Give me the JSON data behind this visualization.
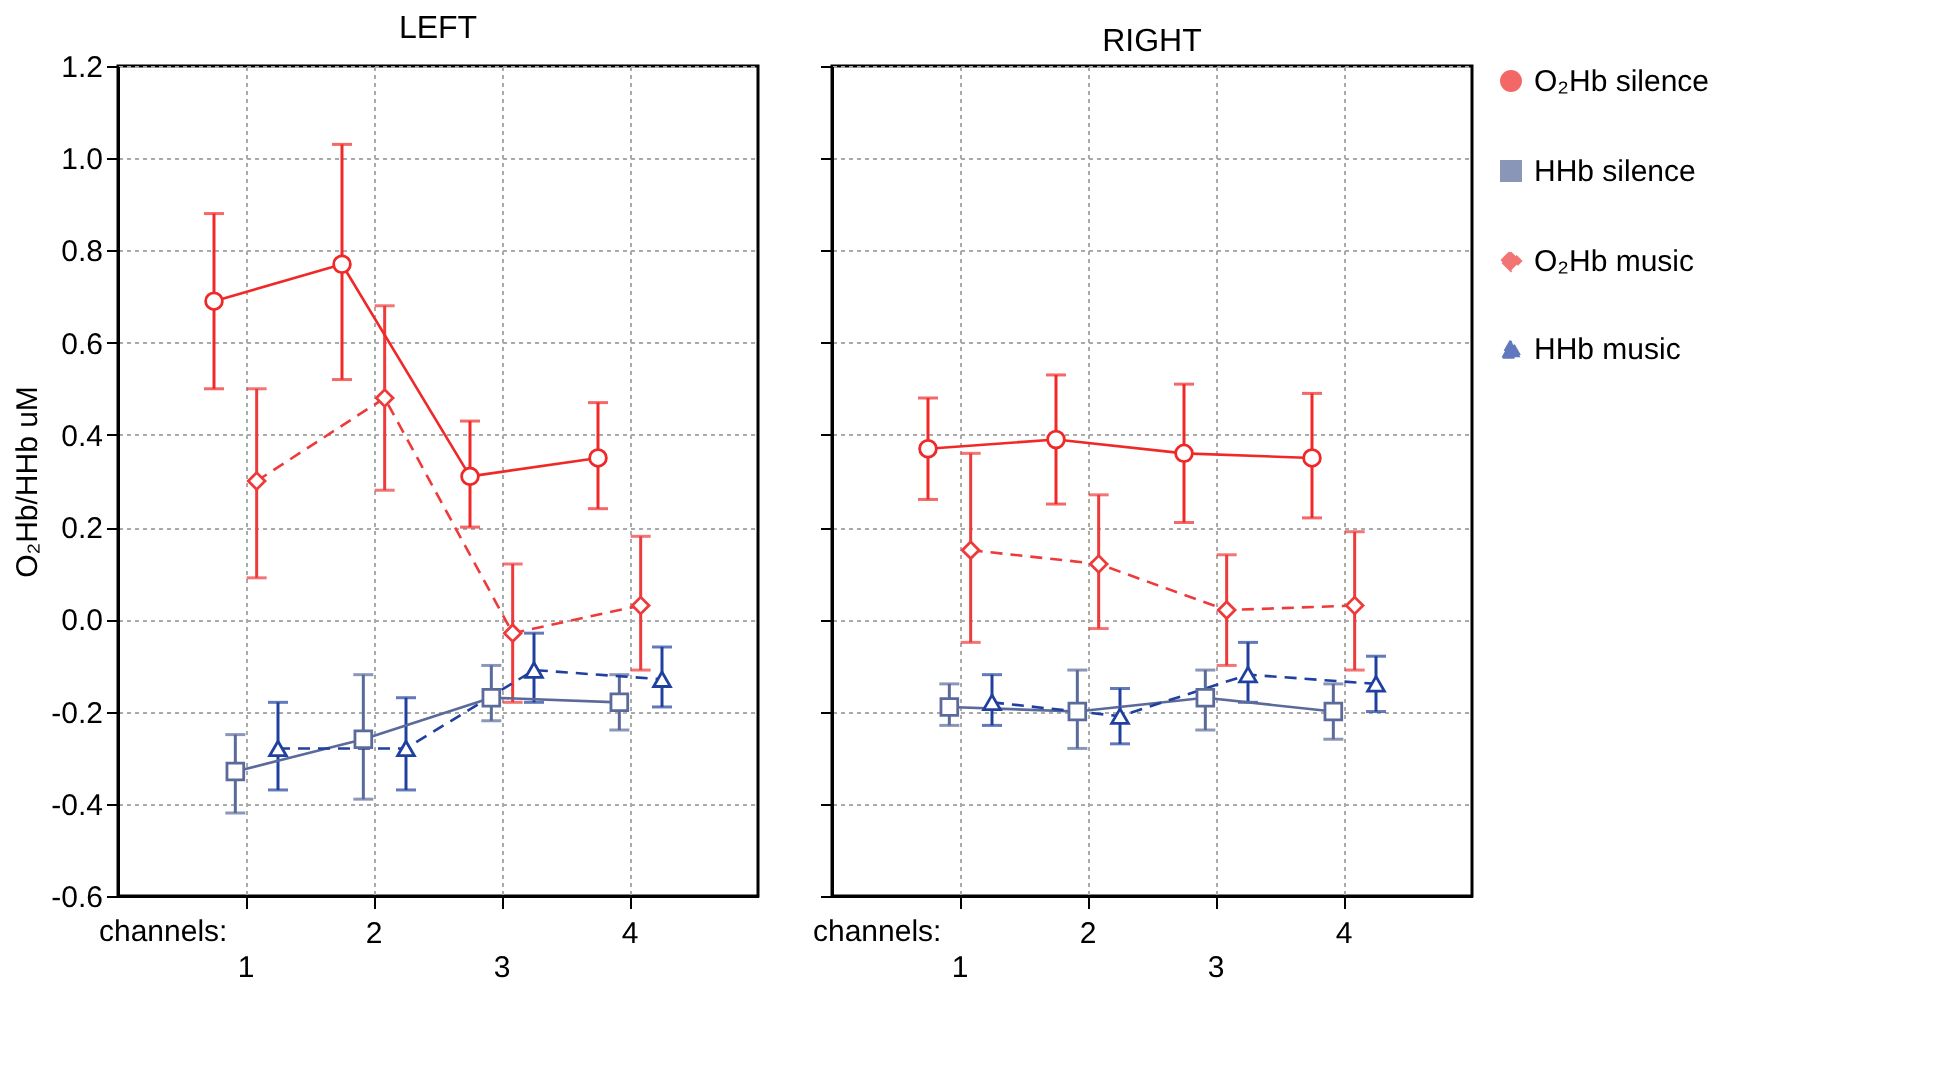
{
  "chart_data": [
    {
      "type": "line",
      "title": "LEFT",
      "xlabel": "channels:",
      "ylabel": "O₂Hb/HHb uM",
      "categories": [
        "1",
        "2",
        "3",
        "4"
      ],
      "ylim": [
        -0.6,
        1.2
      ],
      "yticks": [
        -0.6,
        -0.4,
        -0.2,
        {
          "value": 0,
          "label": "0.0"
        },
        0.2,
        0.4,
        0.6,
        0.8,
        {
          "value": 1,
          "label": "1.0"
        },
        1.2
      ],
      "grid": true,
      "series": [
        {
          "color": "#f02828",
          "marker": "circle",
          "line_style": "solid",
          "values": [
            0.69,
            0.77,
            0.31,
            0.35
          ],
          "errors": [
            [
              0.5,
              0.88
            ],
            [
              0.52,
              1.03
            ],
            [
              0.2,
              0.43
            ],
            [
              0.24,
              0.47
            ]
          ]
        },
        {
          "color": "#5a6a9a",
          "marker": "square",
          "line_style": "solid",
          "values": [
            -0.33,
            -0.26,
            -0.17,
            -0.18
          ],
          "errors": [
            [
              -0.42,
              -0.25
            ],
            [
              -0.39,
              -0.12
            ],
            [
              -0.22,
              -0.1
            ],
            [
              -0.24,
              -0.12
            ]
          ]
        },
        {
          "color": "#ee3a3a",
          "marker": "diamond",
          "line_style": "dashed",
          "values": [
            0.3,
            0.48,
            -0.03,
            0.03
          ],
          "errors": [
            [
              0.09,
              0.5
            ],
            [
              0.28,
              0.68
            ],
            [
              -0.18,
              0.12
            ],
            [
              -0.11,
              0.18
            ]
          ]
        },
        {
          "color": "#2040a0",
          "marker": "triangle",
          "line_style": "dashed",
          "values": [
            -0.28,
            -0.28,
            -0.11,
            -0.13
          ],
          "errors": [
            [
              -0.37,
              -0.18
            ],
            [
              -0.37,
              -0.17
            ],
            [
              -0.18,
              -0.03
            ],
            [
              -0.19,
              -0.06
            ]
          ]
        }
      ]
    },
    {
      "type": "line",
      "title": "RIGHT",
      "xlabel": "channels:",
      "categories": [
        "1",
        "2",
        "3",
        "4"
      ],
      "ylim": [
        -0.6,
        1.2
      ],
      "yticks": [
        -0.6,
        -0.4,
        -0.2,
        0,
        0.2,
        0.4,
        0.6,
        0.8,
        1,
        1.2
      ],
      "grid": true,
      "legend": "right",
      "tick_labels": "x",
      "series": [
        {
          "name": "O₂Hb silence",
          "color": "#f02828",
          "marker": "circle",
          "line_style": "solid",
          "values": [
            0.37,
            0.39,
            0.36,
            0.35
          ],
          "errors": [
            [
              0.26,
              0.48
            ],
            [
              0.25,
              0.53
            ],
            [
              0.21,
              0.51
            ],
            [
              0.22,
              0.49
            ]
          ]
        },
        {
          "name": "HHb silence",
          "color": "#5a6a9a",
          "marker": "square",
          "line_style": "solid",
          "values": [
            -0.19,
            -0.2,
            -0.17,
            -0.2
          ],
          "errors": [
            [
              -0.23,
              -0.14
            ],
            [
              -0.28,
              -0.11
            ],
            [
              -0.24,
              -0.11
            ],
            [
              -0.26,
              -0.14
            ]
          ]
        },
        {
          "name": "O₂Hb music",
          "color": "#ee3a3a",
          "marker": "diamond",
          "line_style": "dashed",
          "values": [
            0.15,
            0.12,
            0.02,
            0.03
          ],
          "errors": [
            [
              -0.05,
              0.36
            ],
            [
              -0.02,
              0.27
            ],
            [
              -0.1,
              0.14
            ],
            [
              -0.11,
              0.19
            ]
          ]
        },
        {
          "name": "HHb music",
          "color": "#2040a0",
          "marker": "triangle",
          "line_style": "dashed",
          "values": [
            -0.18,
            -0.21,
            -0.12,
            -0.14
          ],
          "errors": [
            [
              -0.23,
              -0.12
            ],
            [
              -0.27,
              -0.15
            ],
            [
              -0.18,
              -0.05
            ],
            [
              -0.2,
              -0.08
            ]
          ]
        }
      ]
    }
  ]
}
